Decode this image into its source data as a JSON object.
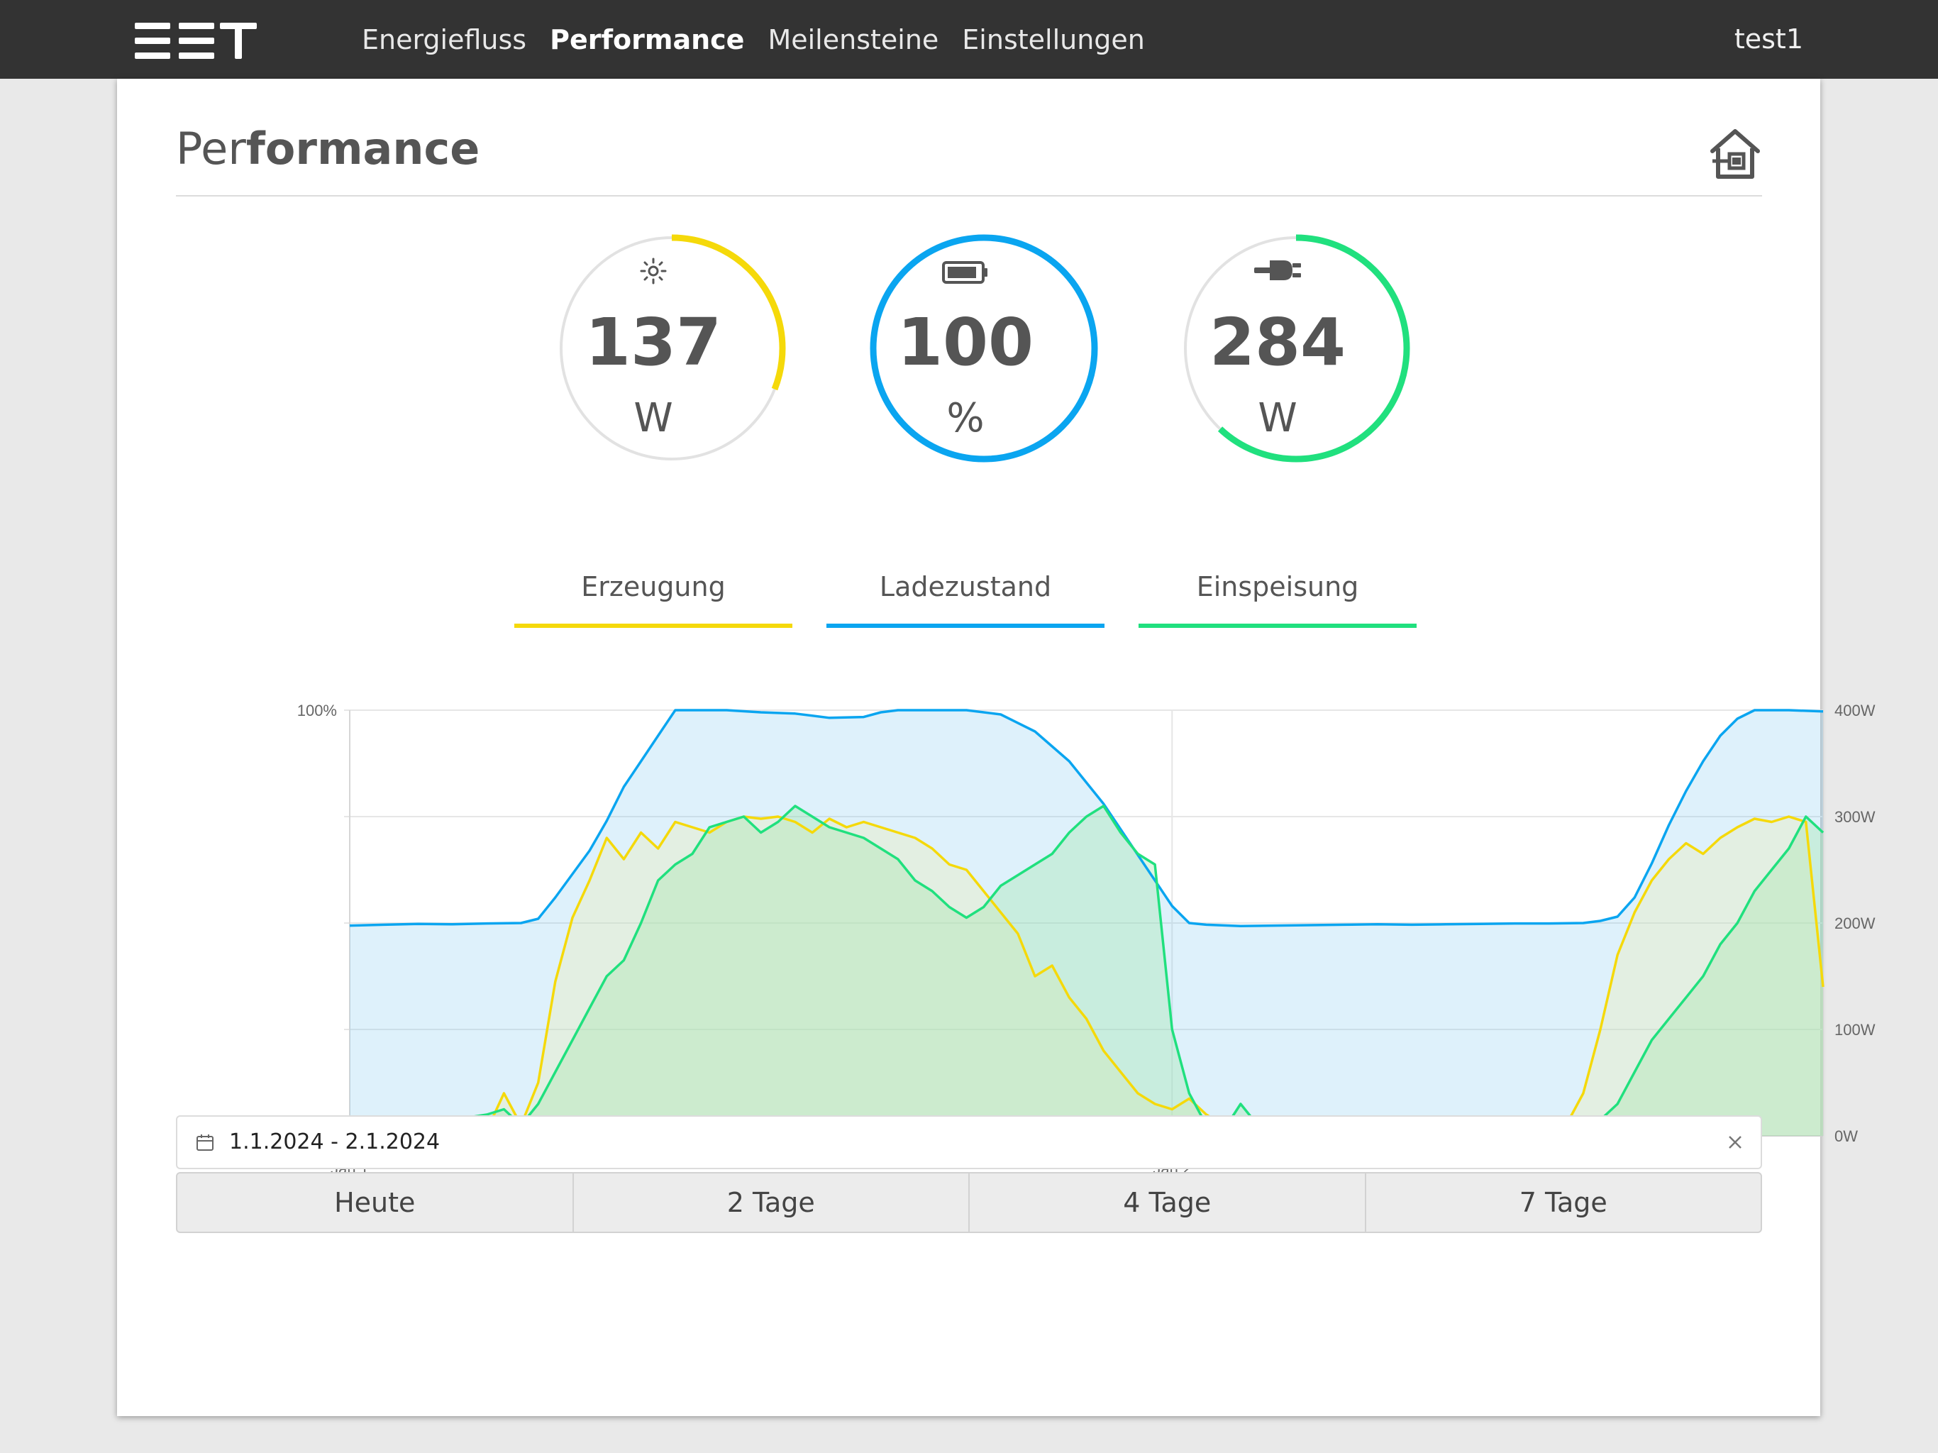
{
  "nav": {
    "logo": "EET",
    "items": [
      {
        "label": "Energiefluss"
      },
      {
        "label": "Performance"
      },
      {
        "label": "Meilensteine"
      },
      {
        "label": "Einstellungen"
      }
    ],
    "active_index": 1,
    "user": "test1"
  },
  "page": {
    "title_light": "Per",
    "title_bold": "formance",
    "house_icon": "house-plug-icon"
  },
  "gauges": [
    {
      "icon": "sun-icon",
      "value": "137",
      "unit": "W",
      "label": "Erzeugung",
      "color": "#f5d90a",
      "fill_fraction": 0.31
    },
    {
      "icon": "battery-icon",
      "value": "100",
      "unit": "%",
      "label": "Ladezustand",
      "color": "#0aa5f0",
      "fill_fraction": 1.0
    },
    {
      "icon": "plug-icon",
      "value": "284",
      "unit": "W",
      "label": "Einspeisung",
      "color": "#20e07e",
      "fill_fraction": 0.62
    }
  ],
  "chart_data": {
    "type": "area",
    "x_tick_labels": [
      "Jan 1",
      "Jan 2"
    ],
    "y_left_ticks": [
      "100%",
      "0%"
    ],
    "y_left_range": [
      0,
      100
    ],
    "y_right_ticks": [
      "400W",
      "300W",
      "200W",
      "100W",
      "0W"
    ],
    "y_right_range": [
      0,
      400
    ],
    "x_range_hours": [
      0,
      43
    ],
    "grid": true,
    "series": [
      {
        "color": "#0aa5f0",
        "fill": "rgba(125,200,240,0.25)",
        "axis": "left",
        "points": [
          [
            0,
            49.4
          ],
          [
            1,
            49.6
          ],
          [
            2,
            49.8
          ],
          [
            3,
            49.7
          ],
          [
            4,
            49.9
          ],
          [
            5,
            50.0
          ],
          [
            5.5,
            51
          ],
          [
            6,
            56
          ],
          [
            7,
            67
          ],
          [
            7.5,
            74
          ],
          [
            8,
            82
          ],
          [
            8.5,
            88
          ],
          [
            9,
            94
          ],
          [
            9.5,
            100
          ],
          [
            10,
            100
          ],
          [
            11,
            100
          ],
          [
            12,
            99.5
          ],
          [
            13,
            99.2
          ],
          [
            14,
            98.2
          ],
          [
            15,
            98.4
          ],
          [
            15.5,
            99.5
          ],
          [
            16,
            100
          ],
          [
            17,
            100
          ],
          [
            18,
            100
          ],
          [
            19,
            99
          ],
          [
            20,
            95
          ],
          [
            21,
            88
          ],
          [
            22,
            78
          ],
          [
            23,
            66
          ],
          [
            24,
            54
          ],
          [
            24.5,
            50
          ],
          [
            25,
            49.6
          ],
          [
            26,
            49.3
          ],
          [
            27,
            49.4
          ],
          [
            28,
            49.5
          ],
          [
            29,
            49.6
          ],
          [
            30,
            49.7
          ],
          [
            31,
            49.6
          ],
          [
            32,
            49.7
          ],
          [
            33,
            49.8
          ],
          [
            34,
            49.9
          ],
          [
            35,
            49.9
          ],
          [
            36,
            50
          ],
          [
            36.5,
            50.5
          ],
          [
            37,
            51.5
          ],
          [
            37.5,
            56
          ],
          [
            38,
            64
          ],
          [
            38.5,
            73
          ],
          [
            39,
            81
          ],
          [
            39.5,
            88
          ],
          [
            40,
            94
          ],
          [
            40.5,
            98
          ],
          [
            41,
            100
          ],
          [
            42,
            100
          ],
          [
            43,
            99.7
          ]
        ]
      },
      {
        "color": "#f5d90a",
        "fill": "rgba(240,235,170,0.30)",
        "axis": "right",
        "points": [
          [
            0,
            0
          ],
          [
            1,
            15
          ],
          [
            2,
            5
          ],
          [
            3,
            2
          ],
          [
            4,
            5
          ],
          [
            4.5,
            40
          ],
          [
            5,
            10
          ],
          [
            5.5,
            50
          ],
          [
            6,
            145
          ],
          [
            6.5,
            205
          ],
          [
            7,
            240
          ],
          [
            7.5,
            280
          ],
          [
            8,
            260
          ],
          [
            8.5,
            285
          ],
          [
            9,
            270
          ],
          [
            9.5,
            295
          ],
          [
            10,
            290
          ],
          [
            10.5,
            285
          ],
          [
            11,
            295
          ],
          [
            11.5,
            300
          ],
          [
            12,
            298
          ],
          [
            12.5,
            300
          ],
          [
            13,
            295
          ],
          [
            13.5,
            285
          ],
          [
            14,
            298
          ],
          [
            14.5,
            290
          ],
          [
            15,
            295
          ],
          [
            15.5,
            290
          ],
          [
            16,
            285
          ],
          [
            16.5,
            280
          ],
          [
            17,
            270
          ],
          [
            17.5,
            255
          ],
          [
            18,
            250
          ],
          [
            18.5,
            230
          ],
          [
            19,
            210
          ],
          [
            19.5,
            190
          ],
          [
            20,
            150
          ],
          [
            20.5,
            160
          ],
          [
            21,
            130
          ],
          [
            21.5,
            110
          ],
          [
            22,
            80
          ],
          [
            22.5,
            60
          ],
          [
            23,
            40
          ],
          [
            23.5,
            30
          ],
          [
            24,
            25
          ],
          [
            24.5,
            35
          ],
          [
            25,
            20
          ],
          [
            25.5,
            10
          ],
          [
            26,
            15
          ],
          [
            27,
            5
          ],
          [
            28,
            3
          ],
          [
            29,
            2
          ],
          [
            30,
            2
          ],
          [
            31,
            1
          ],
          [
            32,
            0
          ],
          [
            33,
            0
          ],
          [
            34,
            0
          ],
          [
            35,
            2
          ],
          [
            35.5,
            10
          ],
          [
            36,
            40
          ],
          [
            36.5,
            100
          ],
          [
            37,
            170
          ],
          [
            37.5,
            210
          ],
          [
            38,
            240
          ],
          [
            38.5,
            260
          ],
          [
            39,
            275
          ],
          [
            39.5,
            265
          ],
          [
            40,
            280
          ],
          [
            40.5,
            290
          ],
          [
            41,
            298
          ],
          [
            41.5,
            295
          ],
          [
            42,
            300
          ],
          [
            42.5,
            295
          ],
          [
            43,
            140
          ]
        ]
      },
      {
        "color": "#20e07e",
        "fill": "rgba(160,230,170,0.35)",
        "axis": "right",
        "points": [
          [
            0,
            0
          ],
          [
            1,
            5
          ],
          [
            2,
            10
          ],
          [
            3,
            15
          ],
          [
            4,
            20
          ],
          [
            4.5,
            25
          ],
          [
            5,
            10
          ],
          [
            5.5,
            30
          ],
          [
            6,
            60
          ],
          [
            6.5,
            90
          ],
          [
            7,
            120
          ],
          [
            7.5,
            150
          ],
          [
            8,
            165
          ],
          [
            8.5,
            200
          ],
          [
            9,
            240
          ],
          [
            9.5,
            255
          ],
          [
            10,
            265
          ],
          [
            10.5,
            290
          ],
          [
            11,
            295
          ],
          [
            11.5,
            300
          ],
          [
            12,
            285
          ],
          [
            12.5,
            295
          ],
          [
            13,
            310
          ],
          [
            13.5,
            300
          ],
          [
            14,
            290
          ],
          [
            14.5,
            285
          ],
          [
            15,
            280
          ],
          [
            15.5,
            270
          ],
          [
            16,
            260
          ],
          [
            16.5,
            240
          ],
          [
            17,
            230
          ],
          [
            17.5,
            215
          ],
          [
            18,
            205
          ],
          [
            18.5,
            215
          ],
          [
            19,
            235
          ],
          [
            19.5,
            245
          ],
          [
            20,
            255
          ],
          [
            20.5,
            265
          ],
          [
            21,
            285
          ],
          [
            21.5,
            300
          ],
          [
            22,
            310
          ],
          [
            22.5,
            285
          ],
          [
            23,
            265
          ],
          [
            23.5,
            255
          ],
          [
            24,
            100
          ],
          [
            24.5,
            40
          ],
          [
            25,
            10
          ],
          [
            25.5,
            5
          ],
          [
            26,
            30
          ],
          [
            26.5,
            10
          ],
          [
            27,
            15
          ],
          [
            27.5,
            5
          ],
          [
            28,
            10
          ],
          [
            28.5,
            0
          ],
          [
            29,
            5
          ],
          [
            30,
            0
          ],
          [
            32,
            0
          ],
          [
            34,
            0
          ],
          [
            36,
            5
          ],
          [
            36.5,
            15
          ],
          [
            37,
            30
          ],
          [
            37.5,
            60
          ],
          [
            38,
            90
          ],
          [
            38.5,
            110
          ],
          [
            39,
            130
          ],
          [
            39.5,
            150
          ],
          [
            40,
            180
          ],
          [
            40.5,
            200
          ],
          [
            41,
            230
          ],
          [
            41.5,
            250
          ],
          [
            42,
            270
          ],
          [
            42.5,
            300
          ],
          [
            43,
            285
          ]
        ]
      }
    ]
  },
  "date_range": {
    "calendar_icon": "calendar-icon",
    "value": "1.1.2024 - 2.1.2024",
    "clear_icon": "close-icon"
  },
  "range_buttons": [
    {
      "label": "Heute"
    },
    {
      "label": "2 Tage"
    },
    {
      "label": "4 Tage"
    },
    {
      "label": "7 Tage"
    }
  ]
}
